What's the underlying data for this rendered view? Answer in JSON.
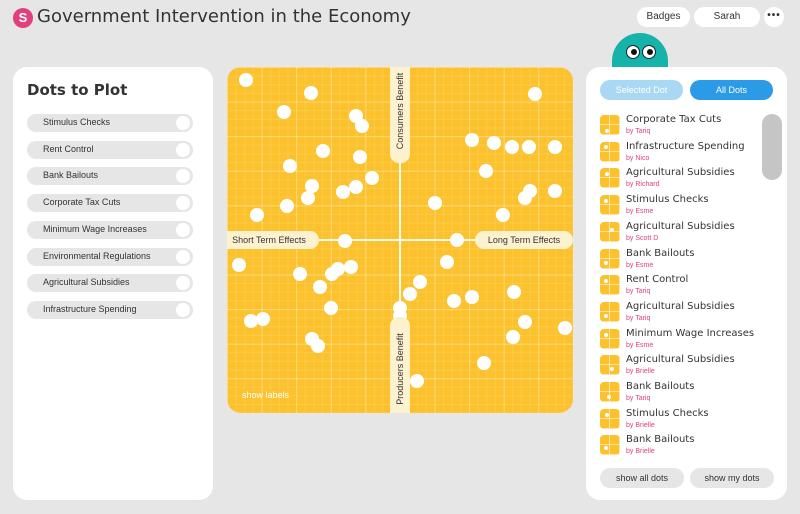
{
  "app": {
    "logo_letter": "S",
    "title": "Government Intervention in the Economy"
  },
  "header": {
    "badges_label": "Badges",
    "user_name": "Sarah",
    "more_label": "•••"
  },
  "left_panel": {
    "title": "Dots to Plot",
    "items": [
      "Stimulus Checks",
      "Rent Control",
      "Bank Bailouts",
      "Corporate Tax Cuts",
      "Minimum Wage Increases",
      "Environmental Regulations",
      "Agricultural Subsidies",
      "Infrastructure Spending"
    ]
  },
  "plot": {
    "label_left": "Short Term Effects",
    "label_right": "Long Term Effects",
    "label_top": "Consumers Benefit",
    "label_bottom": "Producers Benefit",
    "show_labels": "show labels",
    "background_color": "#fcc22d",
    "dots": [
      [
        0.055,
        0.038
      ],
      [
        0.243,
        0.074
      ],
      [
        0.165,
        0.131
      ],
      [
        0.5,
        0.012
      ],
      [
        0.372,
        0.143
      ],
      [
        0.389,
        0.17
      ],
      [
        0.278,
        0.243
      ],
      [
        0.182,
        0.286
      ],
      [
        0.384,
        0.26
      ],
      [
        0.174,
        0.403
      ],
      [
        0.246,
        0.344
      ],
      [
        0.419,
        0.321
      ],
      [
        0.335,
        0.361
      ],
      [
        0.233,
        0.379
      ],
      [
        0.373,
        0.347
      ],
      [
        0.086,
        0.428
      ],
      [
        0.891,
        0.078
      ],
      [
        0.772,
        0.221
      ],
      [
        0.824,
        0.231
      ],
      [
        0.707,
        0.212
      ],
      [
        0.873,
        0.231
      ],
      [
        0.948,
        0.231
      ],
      [
        0.748,
        0.301
      ],
      [
        0.875,
        0.357
      ],
      [
        0.86,
        0.38
      ],
      [
        0.948,
        0.358
      ],
      [
        0.797,
        0.427
      ],
      [
        0.6,
        0.392
      ],
      [
        0.034,
        0.571
      ],
      [
        0.341,
        0.504
      ],
      [
        0.665,
        0.5
      ],
      [
        0.749,
        0.5
      ],
      [
        0.637,
        0.563
      ],
      [
        0.21,
        0.599
      ],
      [
        0.357,
        0.578
      ],
      [
        0.27,
        0.636
      ],
      [
        0.304,
        0.599
      ],
      [
        0.321,
        0.585
      ],
      [
        0.559,
        0.622
      ],
      [
        0.708,
        0.665
      ],
      [
        0.655,
        0.676
      ],
      [
        0.53,
        0.655
      ],
      [
        0.3,
        0.696
      ],
      [
        0.5,
        0.696
      ],
      [
        0.5,
        0.72
      ],
      [
        0.069,
        0.734
      ],
      [
        0.104,
        0.728
      ],
      [
        0.829,
        0.65
      ],
      [
        0.86,
        0.736
      ],
      [
        0.976,
        0.753
      ],
      [
        0.828,
        0.781
      ],
      [
        0.246,
        0.786
      ],
      [
        0.263,
        0.806
      ],
      [
        0.742,
        0.856
      ],
      [
        0.5,
        0.85
      ],
      [
        0.55,
        0.908
      ]
    ]
  },
  "right_panel": {
    "tab_selected": "Selected Dot",
    "tab_all": "All Dots",
    "entries": [
      {
        "title": "Corporate Tax Cuts",
        "author": "by Tariq",
        "dot": [
          0.35,
          0.8
        ]
      },
      {
        "title": "Infrastructure Spending",
        "author": "by Nico",
        "dot": [
          0.3,
          0.25
        ]
      },
      {
        "title": "Agricultural Subsidies",
        "author": "by Richard",
        "dot": [
          0.35,
          0.3
        ]
      },
      {
        "title": "Stimulus Checks",
        "author": "by Esme",
        "dot": [
          0.3,
          0.3
        ]
      },
      {
        "title": "Agricultural Subsidies",
        "author": "by Scott D",
        "dot": [
          0.6,
          0.4
        ]
      },
      {
        "title": "Bank Bailouts",
        "author": "by Esme",
        "dot": [
          0.3,
          0.7
        ]
      },
      {
        "title": "Rent Control",
        "author": "by Tariq",
        "dot": [
          0.3,
          0.3
        ]
      },
      {
        "title": "Agricultural Subsidies",
        "author": "by Tariq",
        "dot": [
          0.3,
          0.7
        ]
      },
      {
        "title": "Minimum Wage Increases",
        "author": "by Esme",
        "dot": [
          0.3,
          0.3
        ]
      },
      {
        "title": "Agricultural Subsidies",
        "author": "by Brielle",
        "dot": [
          0.6,
          0.7
        ]
      },
      {
        "title": "Bank Bailouts",
        "author": "by Tariq",
        "dot": [
          0.45,
          0.75
        ]
      },
      {
        "title": "Stimulus Checks",
        "author": "by Brielle",
        "dot": [
          0.35,
          0.3
        ]
      },
      {
        "title": "Bank Bailouts",
        "author": "by Brielle",
        "dot": [
          0.3,
          0.65
        ]
      }
    ],
    "show_all_label": "show all dots",
    "show_mine_label": "show my dots"
  }
}
